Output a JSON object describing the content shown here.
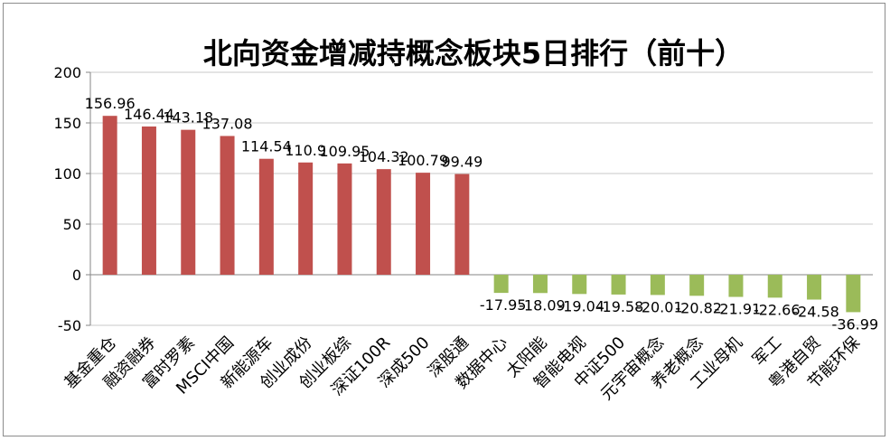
{
  "chart_data": {
    "type": "bar",
    "title": "北向资金增减持概念板块5日排行（前十）",
    "xlabel": "",
    "ylabel": "",
    "ylim": [
      -50,
      200
    ],
    "yticks": [
      "200",
      "150",
      "100",
      "50",
      "0",
      "-50"
    ],
    "grid": true,
    "legend": "none",
    "categories": [
      "基金重仓",
      "融资融券",
      "富时罗素",
      "MSCI中国",
      "新能源车",
      "创业成份",
      "创业板综",
      "深证100R",
      "深成500",
      "深股通",
      "数据中心",
      "太阳能",
      "智能电视",
      "中证500",
      "元宇宙概念",
      "养老概念",
      "工业母机",
      "军工",
      "粤港自贸",
      "节能环保"
    ],
    "values": [
      156.96,
      146.44,
      143.18,
      137.08,
      114.54,
      110.9,
      109.95,
      104.32,
      100.79,
      99.49,
      -17.95,
      -18.09,
      -19.04,
      -19.58,
      -20.01,
      -20.82,
      -21.91,
      -22.66,
      -24.58,
      -36.99
    ],
    "data_labels": [
      "156.96",
      "146.44",
      "143.18",
      "137.08",
      "114.54",
      "110.9",
      "109.95",
      "104.32",
      "100.79",
      "99.49",
      "-17.95",
      "-18.09",
      "-19.04",
      "-19.58",
      "-20.01",
      "-20.82",
      "-21.91",
      "-22.66",
      "-24.58",
      "-36.99"
    ],
    "colors": {
      "positive": "#c0504d",
      "negative": "#9bbb59",
      "axis": "#868686",
      "grid": "#c8c8c8",
      "text": "#000000"
    }
  }
}
